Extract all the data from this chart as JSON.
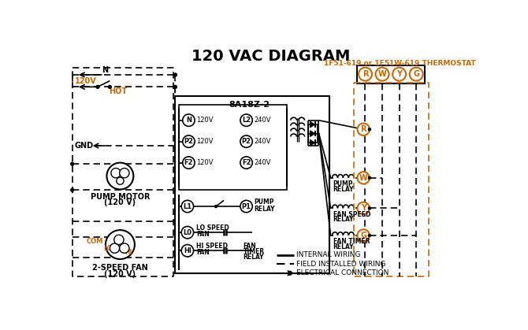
{
  "title": "120 VAC DIAGRAM",
  "title_fontsize": 16,
  "title_fontweight": "bold",
  "bg_color": "#ffffff",
  "line_color": "#000000",
  "orange_color": "#cc6600",
  "thermostat_label": "1F51-619 or 1F51W-619 THERMOSTAT",
  "box_label": "8A18Z-2",
  "terminal_labels": [
    "R",
    "W",
    "Y",
    "G"
  ],
  "left_terminals": [
    "N",
    "P2",
    "F2"
  ],
  "left_voltages": [
    "120V",
    "120V",
    "120V"
  ],
  "right_terminals": [
    "L2",
    "P2",
    "F2"
  ],
  "right_voltages": [
    "240V",
    "240V",
    "240V"
  ],
  "pump_motor_label": "PUMP MOTOR",
  "pump_motor_label2": "(120 V)",
  "fan_label": "2-SPEED FAN",
  "fan_label2": "(120 V)",
  "legend_internal": "INTERNAL WIRING",
  "legend_field": "FIELD INSTALLED WIRING",
  "legend_elec": "ELECTRICAL CONNECTION"
}
